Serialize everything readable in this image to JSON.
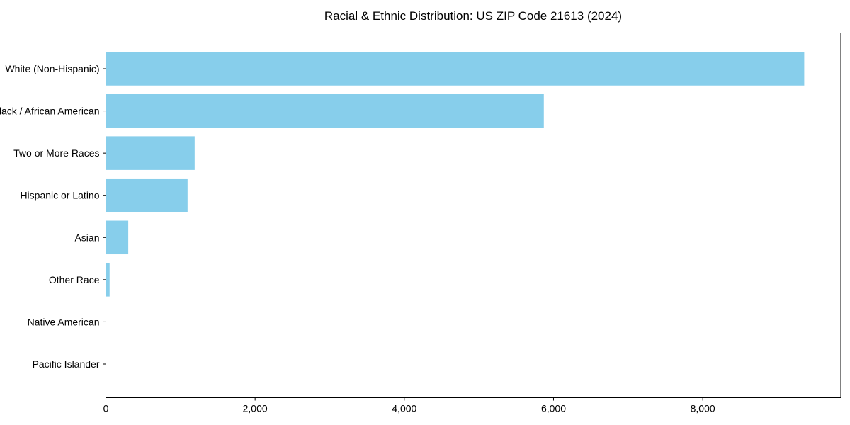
{
  "chart_data": {
    "type": "bar",
    "orientation": "horizontal",
    "title": "Racial & Ethnic Distribution: US ZIP Code 21613 (2024)",
    "categories": [
      "White (Non-Hispanic)",
      "Black / African American",
      "Two or More Races",
      "Hispanic or Latino",
      "Asian",
      "Other Race",
      "Native American",
      "Pacific Islander"
    ],
    "values": [
      9360,
      5870,
      1190,
      1095,
      300,
      50,
      0,
      0
    ],
    "xlabel": "",
    "ylabel": "",
    "xlim": [
      0,
      9850
    ],
    "xticks": [
      0,
      2000,
      4000,
      6000,
      8000
    ],
    "xtick_labels": [
      "0",
      "2,000",
      "4,000",
      "6,000",
      "8,000"
    ],
    "bar_color": "#87CEEB",
    "axis_color": "#000000",
    "text_color": "#000000",
    "background_color": "#ffffff",
    "grid": false,
    "legend": null
  }
}
